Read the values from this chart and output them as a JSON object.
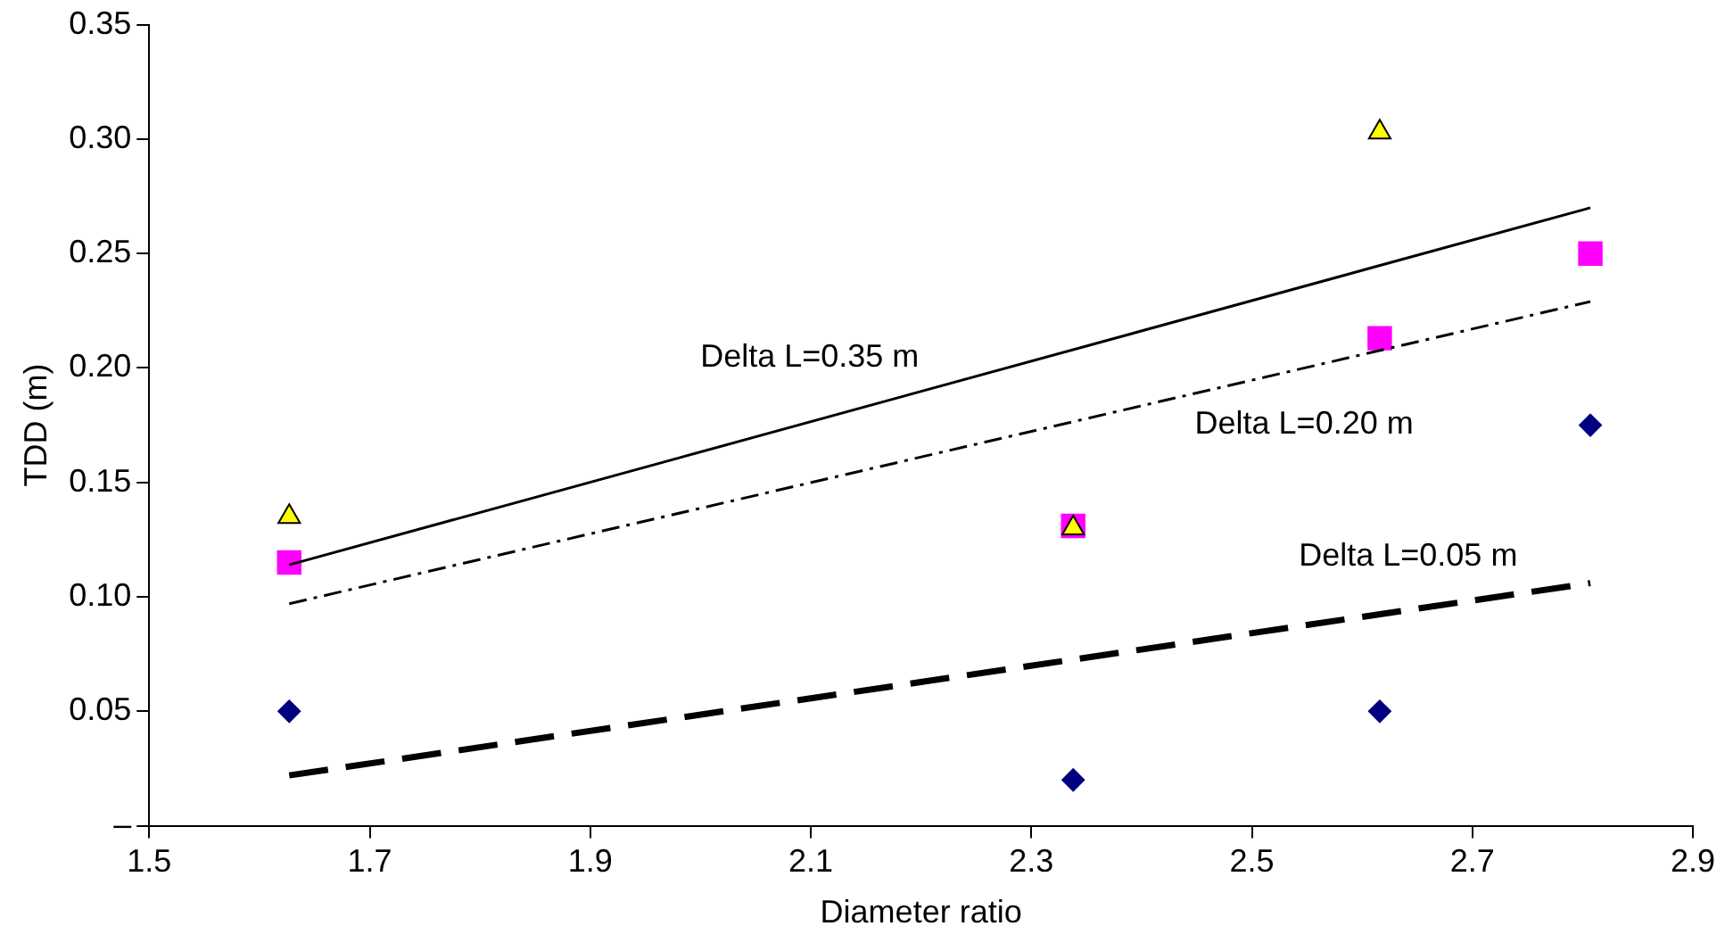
{
  "chart_data": {
    "type": "scatter",
    "xlabel": "Diameter ratio",
    "ylabel": "TDD (m)",
    "xlim": [
      1.5,
      2.9
    ],
    "xticks": [
      1.5,
      1.7,
      1.9,
      2.1,
      2.3,
      2.5,
      2.7,
      2.9
    ],
    "ylim": [
      0,
      0.35
    ],
    "yticks": [
      {
        "value": 0,
        "label": "–"
      },
      0.05,
      {
        "value": 0.1,
        "label": "0.10"
      },
      0.15,
      {
        "value": 0.2,
        "label": "0.20"
      },
      0.25,
      {
        "value": 0.3,
        "label": "0.30"
      },
      0.35
    ],
    "grid": false,
    "legend": false,
    "series": [
      {
        "type": "scatter",
        "marker": "triangle",
        "color": "#ffff00",
        "x": [
          1.627,
          2.338,
          2.616
        ],
        "values": [
          0.135,
          0.13,
          0.303
        ]
      },
      {
        "type": "scatter",
        "marker": "square",
        "color": "#ff00ff",
        "x": [
          1.627,
          2.338,
          2.616,
          2.807
        ],
        "values": [
          0.115,
          0.131,
          0.213,
          0.25
        ]
      },
      {
        "type": "scatter",
        "marker": "diamond",
        "color": "#000080",
        "x": [
          1.627,
          2.338,
          2.616,
          2.807
        ],
        "values": [
          0.05,
          0.02,
          0.05,
          0.175
        ]
      },
      {
        "type": "line",
        "name": "Delta L=0.35 m",
        "line_style": "solid",
        "color": "#000000",
        "x": [
          1.627,
          2.807
        ],
        "values": [
          0.114,
          0.27
        ]
      },
      {
        "type": "line",
        "name": "Delta L=0.20 m",
        "line_style": "dashdot",
        "color": "#000000",
        "x": [
          1.627,
          2.807
        ],
        "values": [
          0.097,
          0.229
        ]
      },
      {
        "type": "line",
        "name": "Delta L=0.05 m",
        "line_style": "dashed",
        "color": "#000000",
        "x": [
          1.627,
          2.807
        ],
        "values": [
          0.022,
          0.106
        ]
      }
    ]
  }
}
